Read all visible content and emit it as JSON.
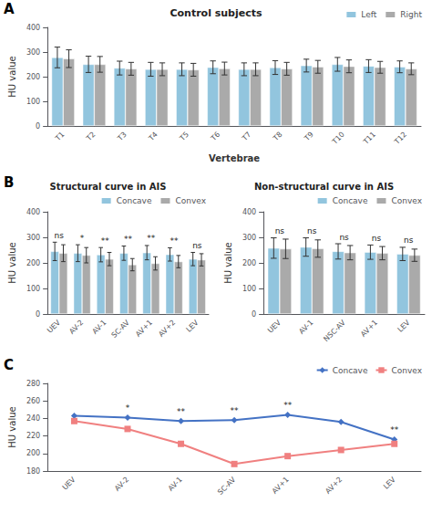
{
  "chart_data": [
    {
      "type": "bar",
      "panel_label": "A",
      "title": "Control subjects",
      "xlabel": "Vertebrae",
      "ylabel": "HU value",
      "categories": [
        "T1",
        "T2",
        "T3",
        "T4",
        "T5",
        "T6",
        "T7",
        "T8",
        "T9",
        "T10",
        "T11",
        "T12"
      ],
      "series": [
        {
          "name": "Left",
          "color": "#92c5de",
          "values": [
            278,
            250,
            235,
            230,
            230,
            238,
            230,
            237,
            245,
            250,
            243,
            240
          ],
          "errors": [
            42,
            33,
            28,
            28,
            26,
            26,
            26,
            28,
            26,
            28,
            26,
            24
          ]
        },
        {
          "name": "Right",
          "color": "#aaaaaa",
          "values": [
            273,
            250,
            232,
            230,
            228,
            233,
            230,
            232,
            240,
            242,
            238,
            232
          ],
          "errors": [
            36,
            32,
            26,
            26,
            26,
            26,
            26,
            26,
            26,
            26,
            24,
            24
          ]
        }
      ],
      "ylim": [
        0,
        400
      ],
      "yticks": [
        0,
        100,
        200,
        300,
        400
      ],
      "grid": false,
      "legend": "upper right"
    },
    {
      "type": "bar",
      "panel_label": "B",
      "title": "Structural curve in AIS",
      "ylabel": "HU value",
      "categories": [
        "UEV",
        "AV-2",
        "AV-1",
        "SC-AV",
        "AV+1",
        "AV+2",
        "LEV"
      ],
      "series": [
        {
          "name": "Concave",
          "color": "#92c5de",
          "values": [
            245,
            238,
            232,
            238,
            240,
            233,
            215
          ],
          "errors": [
            36,
            33,
            28,
            28,
            28,
            26,
            26
          ]
        },
        {
          "name": "Convex",
          "color": "#aaaaaa",
          "values": [
            238,
            230,
            215,
            193,
            198,
            205,
            212
          ],
          "errors": [
            33,
            30,
            26,
            24,
            26,
            24,
            24
          ]
        }
      ],
      "annotations": [
        {
          "category": "UEV",
          "text": "ns"
        },
        {
          "category": "AV-2",
          "text": "*"
        },
        {
          "category": "AV-1",
          "text": "**"
        },
        {
          "category": "SC-AV",
          "text": "**"
        },
        {
          "category": "AV+1",
          "text": "**"
        },
        {
          "category": "AV+2",
          "text": "**"
        },
        {
          "category": "LEV",
          "text": "ns"
        }
      ],
      "ylim": [
        0,
        400
      ],
      "yticks": [
        0,
        100,
        200,
        300,
        400
      ],
      "grid": false,
      "legend": "upper right"
    },
    {
      "type": "bar",
      "title": "Non-structural curve in AIS",
      "ylabel": "HU value",
      "categories": [
        "UEV",
        "AV-1",
        "NSC-AV",
        "AV+1",
        "LEV"
      ],
      "series": [
        {
          "name": "Concave",
          "color": "#92c5de",
          "values": [
            258,
            262,
            245,
            242,
            235
          ],
          "errors": [
            40,
            36,
            30,
            28,
            26
          ]
        },
        {
          "name": "Convex",
          "color": "#aaaaaa",
          "values": [
            255,
            256,
            240,
            238,
            230
          ],
          "errors": [
            38,
            34,
            28,
            26,
            24
          ]
        }
      ],
      "annotations": [
        {
          "category": "UEV",
          "text": "ns"
        },
        {
          "category": "AV-1",
          "text": "ns"
        },
        {
          "category": "NSC-AV",
          "text": "ns"
        },
        {
          "category": "AV+1",
          "text": "ns"
        },
        {
          "category": "LEV",
          "text": "ns"
        }
      ],
      "ylim": [
        0,
        400
      ],
      "yticks": [
        0,
        100,
        200,
        300,
        400
      ],
      "grid": false,
      "legend": "upper right"
    },
    {
      "type": "line",
      "panel_label": "C",
      "ylabel": "HU value",
      "categories": [
        "UEV",
        "AV-2",
        "AV-1",
        "SC-AV",
        "AV+1",
        "AV+2",
        "LEV"
      ],
      "series": [
        {
          "name": "Concave",
          "color": "#4472c4",
          "marker": "diamond",
          "values": [
            243,
            241,
            237,
            238,
            244,
            236,
            216
          ]
        },
        {
          "name": "Convex",
          "color": "#f08080",
          "marker": "square",
          "values": [
            237,
            228,
            211,
            188,
            197,
            204,
            211
          ]
        }
      ],
      "annotations": [
        {
          "category": "AV-2",
          "text": "*"
        },
        {
          "category": "AV-1",
          "text": "**"
        },
        {
          "category": "SC-AV",
          "text": "**"
        },
        {
          "category": "AV+1",
          "text": "**"
        },
        {
          "category": "LEV",
          "text": "**"
        }
      ],
      "ylim": [
        180,
        280
      ],
      "yticks": [
        180,
        200,
        220,
        240,
        260,
        280
      ],
      "grid": false,
      "legend": "upper right"
    }
  ]
}
